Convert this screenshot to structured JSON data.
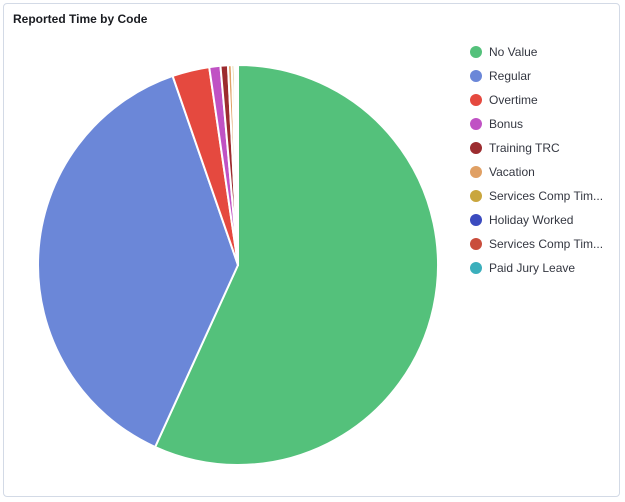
{
  "panel": {
    "title": "Reported Time by Code"
  },
  "chart_data": {
    "type": "pie",
    "title": "Reported Time by Code",
    "legend_position": "right",
    "series": [
      {
        "name": "No Value",
        "value": 56.8,
        "color": "#54c17b"
      },
      {
        "name": "Regular",
        "value": 37.9,
        "color": "#6b87d8"
      },
      {
        "name": "Overtime",
        "value": 3.0,
        "color": "#e5493f"
      },
      {
        "name": "Bonus",
        "value": 0.9,
        "color": "#c052c4"
      },
      {
        "name": "Training TRC",
        "value": 0.6,
        "color": "#9c2c2f"
      },
      {
        "name": "Vacation",
        "value": 0.3,
        "color": "#e0a064"
      },
      {
        "name": "Services Comp Tim...",
        "value": 0.2,
        "color": "#c9a63e"
      },
      {
        "name": "Holiday Worked",
        "value": 0.1,
        "color": "#3b4bbf"
      },
      {
        "name": "Services Comp Tim...",
        "value": 0.1,
        "color": "#c94d3c"
      },
      {
        "name": "Paid Jury Leave",
        "value": 0.1,
        "color": "#3bafbc"
      }
    ]
  }
}
